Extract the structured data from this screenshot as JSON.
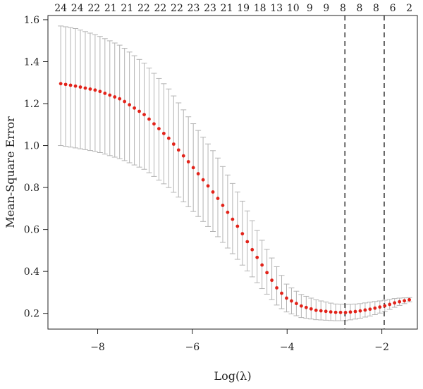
{
  "chart_data": {
    "type": "scatter",
    "title": "",
    "xlabel": "Log(λ)",
    "ylabel": "Mean-Square Error",
    "xlim": [
      -9.05,
      -1.25
    ],
    "ylim": [
      0.125,
      1.62
    ],
    "x_ticks": [
      -8,
      -6,
      -4,
      -2
    ],
    "x_tick_labels": [
      "−8",
      "−6",
      "−4",
      "−2"
    ],
    "y_ticks": [
      0.2,
      0.4,
      0.6,
      0.8,
      1.0,
      1.2,
      1.4,
      1.6
    ],
    "y_tick_labels": [
      "0.2",
      "0.4",
      "0.6",
      "0.8",
      "1.0",
      "1.2",
      "1.4",
      "1.6"
    ],
    "top_axis_labels": [
      "24",
      "24",
      "22",
      "21",
      "21",
      "22",
      "22",
      "22",
      "23",
      "23",
      "21",
      "19",
      "18",
      "13",
      "10",
      "9",
      "9",
      "8",
      "8",
      "8",
      "6",
      "2"
    ],
    "vertical_lines": [
      {
        "x": -2.78,
        "style": "dashed"
      },
      {
        "x": -1.95,
        "style": "dashed"
      }
    ],
    "series": [
      {
        "marker": "point",
        "color": "#e2231a",
        "errorbar_color": "#b3b3b3",
        "x_start": -8.78,
        "x_end": -1.42,
        "count": 72,
        "cv_mean_curve": [
          [
            -8.78,
            1.295
          ],
          [
            -8.5,
            1.285
          ],
          [
            -8.0,
            1.262
          ],
          [
            -7.5,
            1.22
          ],
          [
            -7.0,
            1.145
          ],
          [
            -6.5,
            1.035
          ],
          [
            -6.0,
            0.9
          ],
          [
            -5.5,
            0.76
          ],
          [
            -5.0,
            0.6
          ],
          [
            -4.7,
            0.49
          ],
          [
            -4.5,
            0.42
          ],
          [
            -4.2,
            0.315
          ],
          [
            -4.0,
            0.27
          ],
          [
            -3.7,
            0.235
          ],
          [
            -3.4,
            0.215
          ],
          [
            -3.0,
            0.205
          ],
          [
            -2.78,
            0.204
          ],
          [
            -2.5,
            0.21
          ],
          [
            -2.2,
            0.222
          ],
          [
            -1.95,
            0.235
          ],
          [
            -1.7,
            0.252
          ],
          [
            -1.42,
            0.265
          ]
        ],
        "cv_upper_curve": [
          [
            -8.78,
            1.57
          ],
          [
            -8.5,
            1.56
          ],
          [
            -8.0,
            1.525
          ],
          [
            -7.5,
            1.475
          ],
          [
            -7.0,
            1.39
          ],
          [
            -6.5,
            1.27
          ],
          [
            -6.0,
            1.11
          ],
          [
            -5.5,
            0.955
          ],
          [
            -5.0,
            0.76
          ],
          [
            -4.5,
            0.535
          ],
          [
            -4.2,
            0.415
          ],
          [
            -4.0,
            0.335
          ],
          [
            -3.7,
            0.29
          ],
          [
            -3.4,
            0.265
          ],
          [
            -3.0,
            0.245
          ],
          [
            -2.78,
            0.243
          ],
          [
            -2.5,
            0.245
          ],
          [
            -2.2,
            0.255
          ],
          [
            -1.95,
            0.262
          ],
          [
            -1.7,
            0.272
          ],
          [
            -1.42,
            0.275
          ]
        ],
        "cv_lower_curve": [
          [
            -8.78,
            1.0
          ],
          [
            -8.5,
            0.99
          ],
          [
            -8.0,
            0.97
          ],
          [
            -7.5,
            0.935
          ],
          [
            -7.0,
            0.885
          ],
          [
            -6.5,
            0.8
          ],
          [
            -6.0,
            0.69
          ],
          [
            -5.5,
            0.575
          ],
          [
            -5.0,
            0.445
          ],
          [
            -4.5,
            0.31
          ],
          [
            -4.2,
            0.235
          ],
          [
            -4.0,
            0.205
          ],
          [
            -3.7,
            0.18
          ],
          [
            -3.4,
            0.17
          ],
          [
            -3.0,
            0.165
          ],
          [
            -2.78,
            0.165
          ],
          [
            -2.5,
            0.175
          ],
          [
            -2.2,
            0.19
          ],
          [
            -1.95,
            0.208
          ],
          [
            -1.7,
            0.232
          ],
          [
            -1.42,
            0.255
          ]
        ]
      }
    ],
    "grid": false,
    "legend": "none"
  }
}
